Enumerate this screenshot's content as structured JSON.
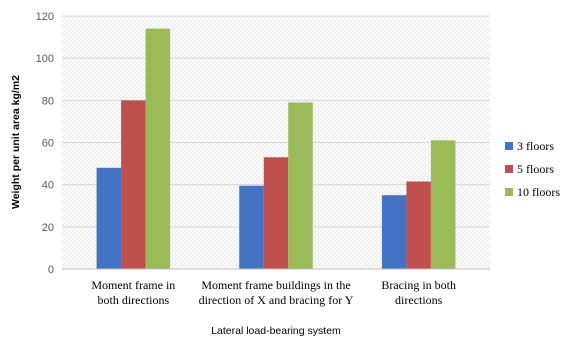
{
  "chart_data": {
    "type": "bar",
    "categories": [
      [
        "Moment frame in",
        "both directions"
      ],
      [
        "Moment frame buildings in the",
        "direction of X and bracing for Y"
      ],
      [
        "Bracing in both",
        "directions"
      ]
    ],
    "series": [
      {
        "name": "3 floors",
        "color": "#4472C4",
        "values": [
          48,
          39.5,
          35
        ]
      },
      {
        "name": "5 floors",
        "color": "#C0504D",
        "values": [
          80,
          53,
          41.5
        ]
      },
      {
        "name": "10 floors",
        "color": "#9BBB59",
        "values": [
          114,
          79,
          61
        ]
      }
    ],
    "xlabel": "Lateral load-bearing system",
    "ylabel": "Weight per unit area kg/m2",
    "ylim": [
      0,
      120
    ],
    "yticks": [
      0,
      20,
      40,
      60,
      80,
      100,
      120
    ],
    "grid": true,
    "legend": "right"
  }
}
